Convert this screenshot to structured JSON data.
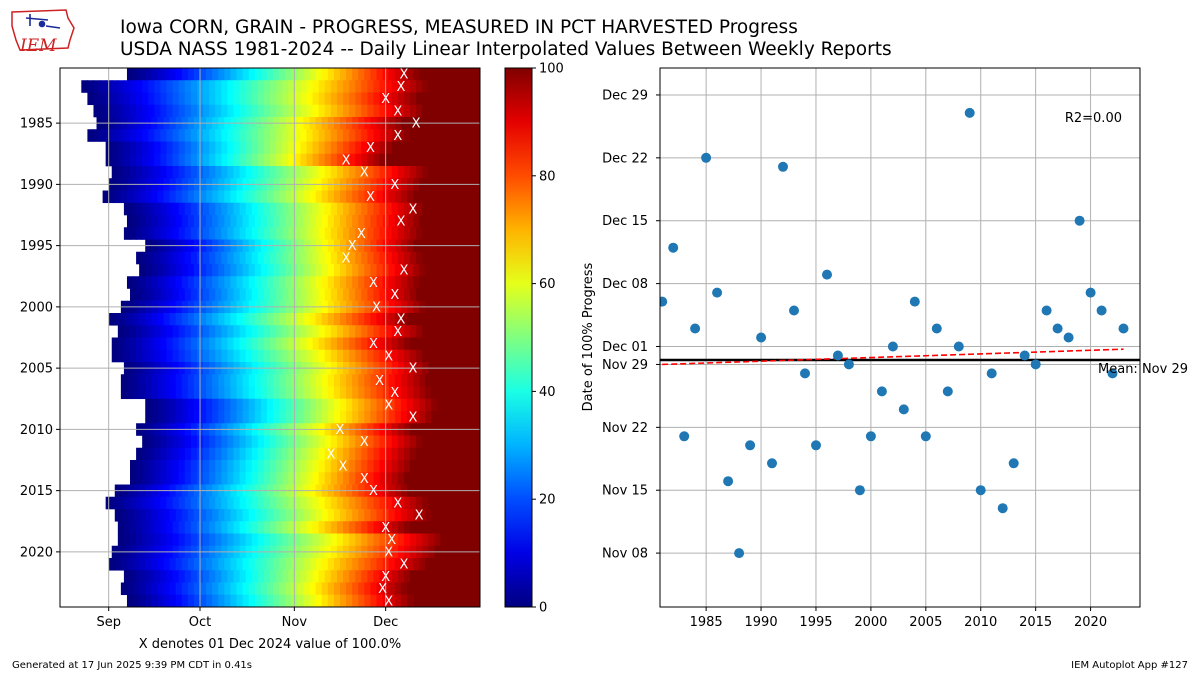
{
  "header": {
    "title_line1": "Iowa CORN, GRAIN - PROGRESS, MEASURED IN PCT HARVESTED Progress",
    "title_line2": "USDA NASS 1981-2024 -- Daily Linear Interpolated Values Between Weekly Reports",
    "logo_text": "IEM"
  },
  "footer": {
    "generated": "Generated at 17 Jun 2025 9:39 PM CDT in 0.41s",
    "app": "IEM Autoplot App #127"
  },
  "colors": {
    "scatter": "#1f77b4",
    "trend": "#ff0000",
    "mean": "#000000",
    "grid": "#b0b0b0",
    "marker_x": "#ffffff",
    "logo_red": "#cc2222",
    "logo_blue": "#1a2a9a"
  },
  "chart_data": [
    {
      "type": "heatmap",
      "name": "daily progress",
      "xlabel": "X denotes 01 Dec 2024 value of 100.0%",
      "x_ticks": [
        "Sep",
        "Oct",
        "Nov",
        "Dec"
      ],
      "y_ticks": [
        "1985",
        "1990",
        "1995",
        "2000",
        "2005",
        "2010",
        "2015",
        "2020"
      ],
      "colorbar_ticks": [
        "0",
        "20",
        "40",
        "60",
        "80",
        "100"
      ],
      "colorbar_range": [
        0,
        100
      ],
      "marker_label": "X",
      "years": [
        1981,
        1982,
        1983,
        1984,
        1985,
        1986,
        1987,
        1988,
        1989,
        1990,
        1991,
        1992,
        1993,
        1994,
        1995,
        1996,
        1997,
        1998,
        1999,
        2000,
        2001,
        2002,
        2003,
        2004,
        2005,
        2006,
        2007,
        2008,
        2009,
        2010,
        2011,
        2012,
        2013,
        2014,
        2015,
        2016,
        2017,
        2018,
        2019,
        2020,
        2021,
        2022,
        2023,
        2024
      ],
      "start_doy": [
        250,
        235,
        237,
        239,
        240,
        237,
        243,
        243,
        245,
        244,
        242,
        249,
        250,
        249,
        256,
        253,
        254,
        250,
        251,
        248,
        244,
        247,
        245,
        245,
        249,
        248,
        248,
        256,
        256,
        253,
        255,
        253,
        251,
        251,
        246,
        243,
        246,
        247,
        247,
        245,
        244,
        249,
        248,
        250
      ],
      "full_doy": [
        345,
        348,
        345,
        347,
        340,
        342,
        337,
        334,
        348,
        346,
        344,
        347,
        346,
        346,
        344,
        346,
        347,
        345,
        345,
        347,
        342,
        347,
        342,
        347,
        349,
        348,
        349,
        351,
        350,
        343,
        346,
        344,
        343,
        341,
        342,
        348,
        349,
        342,
        353,
        351,
        348,
        343,
        341,
        343
      ],
      "mark_doy": [
        341,
        340,
        335,
        339,
        345,
        339,
        330,
        322,
        328,
        338,
        330,
        344,
        340,
        327,
        324,
        322,
        341,
        331,
        338,
        332,
        340,
        339,
        331,
        336,
        344,
        333,
        338,
        336,
        344,
        320,
        328,
        317,
        321,
        328,
        331,
        339,
        346,
        335,
        337,
        336,
        341,
        335,
        334,
        336
      ]
    },
    {
      "type": "scatter",
      "name": "date of 100% progress",
      "ylabel": "Date of 100% Progress",
      "x_ticks": [
        "1985",
        "1990",
        "1995",
        "2000",
        "2005",
        "2010",
        "2015",
        "2020"
      ],
      "y_ticks": [
        "Nov 08",
        "Nov 15",
        "Nov 22",
        "Nov 29",
        "Dec 01",
        "Dec 08",
        "Dec 15",
        "Dec 22",
        "Dec 29"
      ],
      "xlim": [
        1980.8,
        2024.5
      ],
      "ylim": [
        306,
        366
      ],
      "x": [
        1981,
        1982,
        1983,
        1984,
        1985,
        1986,
        1987,
        1988,
        1989,
        1990,
        1991,
        1992,
        1993,
        1994,
        1995,
        1996,
        1997,
        1998,
        1999,
        2000,
        2001,
        2002,
        2003,
        2004,
        2005,
        2006,
        2007,
        2008,
        2009,
        2010,
        2011,
        2012,
        2013,
        2014,
        2015,
        2016,
        2017,
        2018,
        2019,
        2020,
        2021,
        2022,
        2023
      ],
      "y": [
        340,
        346,
        325,
        337,
        356,
        341,
        320,
        312,
        324,
        336,
        322,
        355,
        339,
        332,
        324,
        343,
        334,
        333,
        319,
        325,
        330,
        335,
        328,
        340,
        325,
        337,
        330,
        335,
        361,
        319,
        332,
        317,
        322,
        334,
        333,
        339,
        337,
        336,
        349,
        341,
        339,
        332,
        337
      ],
      "mean_label": "Mean: Nov 29",
      "mean_value": 333.5,
      "r2_label": "R2=0.00",
      "trend": {
        "x": [
          1981,
          2023
        ],
        "y": [
          333.0,
          334.7
        ]
      }
    }
  ]
}
